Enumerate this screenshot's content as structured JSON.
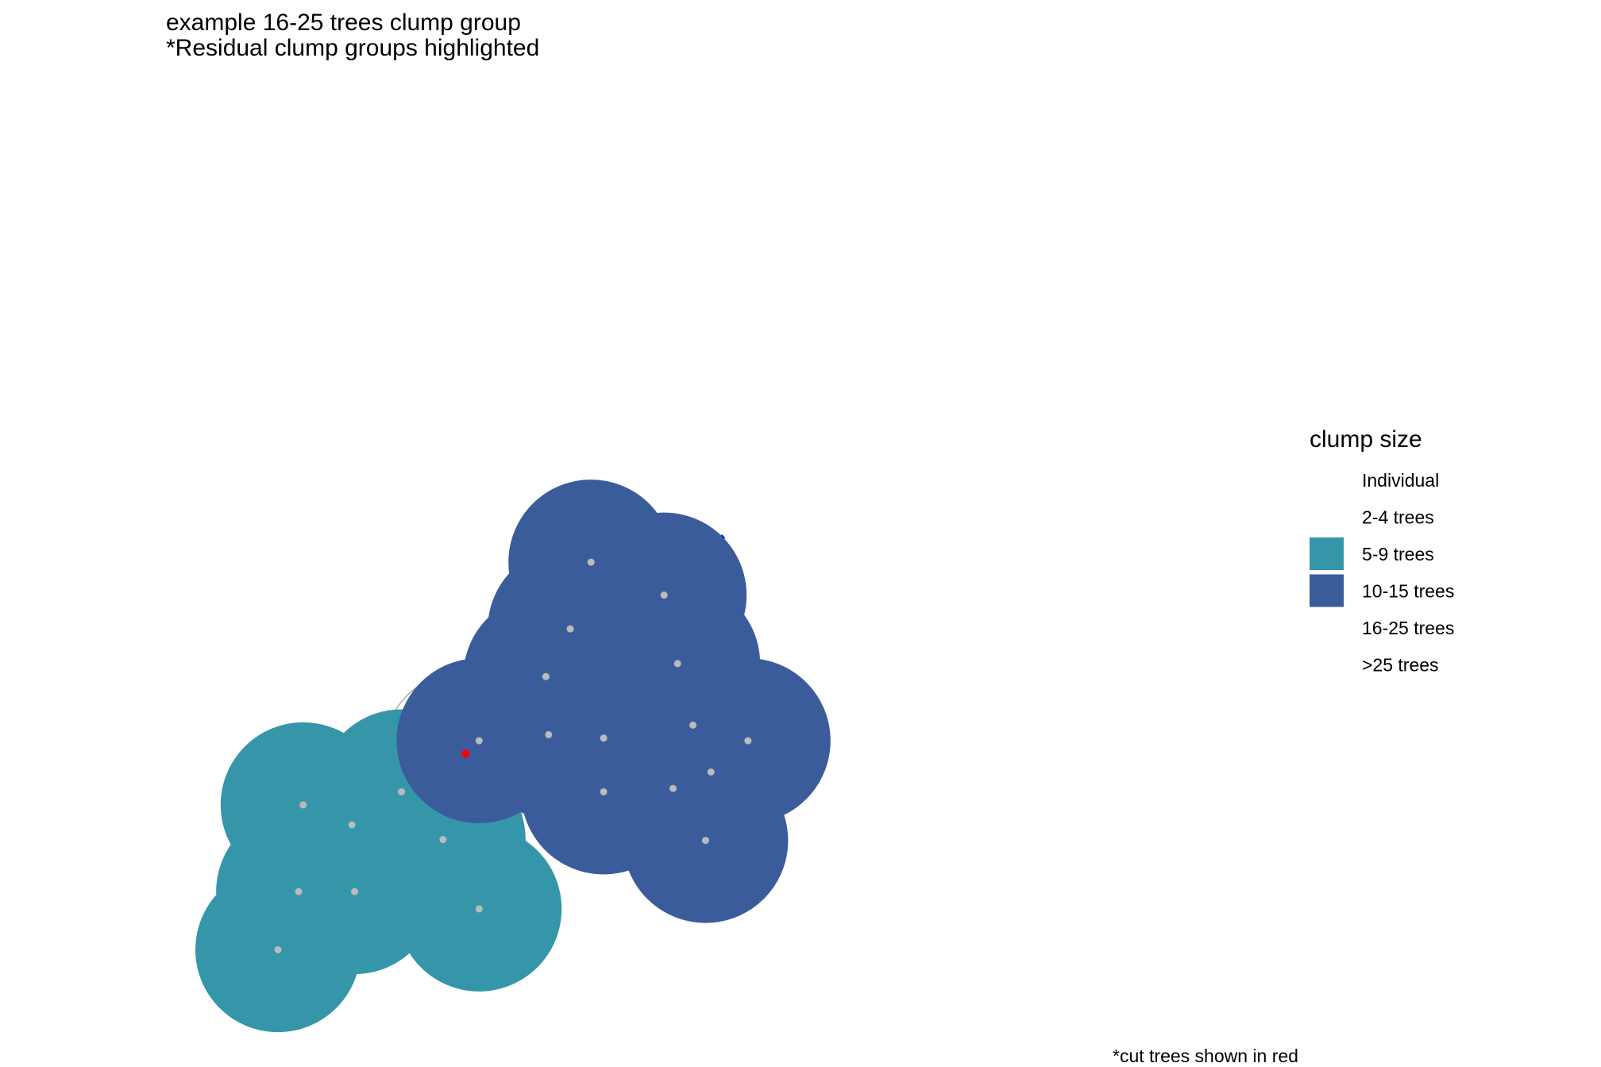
{
  "chart_data": {
    "type": "scatter",
    "title": "example 16-25 trees clump group",
    "subtitle": "*Residual clump groups highlighted",
    "caption": "*cut trees shown in red",
    "axes_visible": false,
    "grid": false,
    "legend": {
      "title": "clump size",
      "placement": "right",
      "entries": [
        {
          "label": "Individual",
          "color": ""
        },
        {
          "label": "2-4 trees",
          "color": ""
        },
        {
          "label": "5-9 trees",
          "color": "#3596AA"
        },
        {
          "label": "10-15 trees",
          "color": "#3B5C9B"
        },
        {
          "label": "16-25 trees",
          "color": ""
        },
        {
          "label": ">25 trees",
          "color": ""
        }
      ]
    },
    "xlim": [
      0,
      100
    ],
    "ylim": [
      0,
      100
    ],
    "tree_radius": 9.15,
    "skid_line": {
      "x1": 0,
      "y1": 0,
      "x2": 56,
      "y2": 54,
      "color": "#0000FF"
    },
    "cut_trees": [
      {
        "x": 27.4,
        "y": 28.9,
        "color": "#FF0000",
        "ring_radius": 9.15
      }
    ],
    "trees": [
      {
        "x": 6.6,
        "y": 6.3,
        "group": "5-9 trees"
      },
      {
        "x": 8.9,
        "y": 13.0,
        "group": "5-9 trees"
      },
      {
        "x": 15.1,
        "y": 13.0,
        "group": "5-9 trees"
      },
      {
        "x": 9.4,
        "y": 23.0,
        "group": "5-9 trees"
      },
      {
        "x": 14.8,
        "y": 20.7,
        "group": "5-9 trees"
      },
      {
        "x": 20.3,
        "y": 24.5,
        "group": "5-9 trees"
      },
      {
        "x": 24.9,
        "y": 19.0,
        "group": "5-9 trees"
      },
      {
        "x": 28.9,
        "y": 11.0,
        "group": "5-9 trees"
      },
      {
        "x": 28.9,
        "y": 30.4,
        "group": "10-15 trees"
      },
      {
        "x": 36.6,
        "y": 31.1,
        "group": "10-15 trees"
      },
      {
        "x": 36.3,
        "y": 37.8,
        "group": "10-15 trees"
      },
      {
        "x": 39.0,
        "y": 43.3,
        "group": "10-15 trees"
      },
      {
        "x": 41.3,
        "y": 51.0,
        "group": "10-15 trees"
      },
      {
        "x": 49.4,
        "y": 47.2,
        "group": "10-15 trees"
      },
      {
        "x": 42.7,
        "y": 30.7,
        "group": "10-15 trees"
      },
      {
        "x": 42.7,
        "y": 24.5,
        "group": "10-15 trees"
      },
      {
        "x": 50.9,
        "y": 39.3,
        "group": "10-15 trees"
      },
      {
        "x": 52.6,
        "y": 32.2,
        "group": "10-15 trees"
      },
      {
        "x": 58.7,
        "y": 30.4,
        "group": "10-15 trees"
      },
      {
        "x": 54.6,
        "y": 26.8,
        "group": "10-15 trees"
      },
      {
        "x": 50.4,
        "y": 24.9,
        "group": "10-15 trees"
      },
      {
        "x": 54.0,
        "y": 18.9,
        "group": "10-15 trees"
      }
    ],
    "colors": {
      "tree_center": "#BBBBBB",
      "ring": "#999999"
    }
  }
}
